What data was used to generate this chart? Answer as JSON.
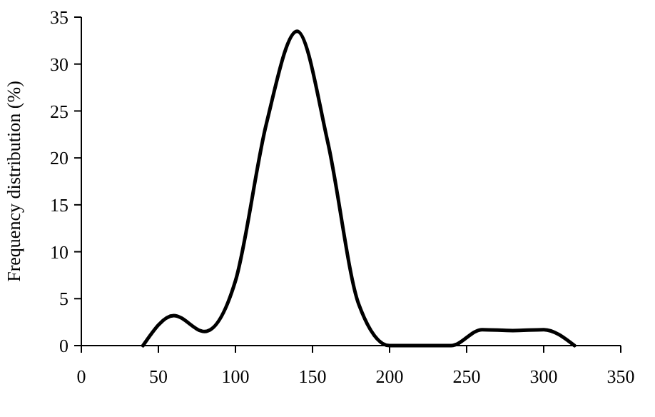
{
  "chart_data": {
    "type": "line",
    "ylabel": "Frequency distribution (%)",
    "x": [
      40,
      60,
      80,
      100,
      120,
      140,
      160,
      180,
      200,
      220,
      240,
      260,
      280,
      300,
      320
    ],
    "series": [
      {
        "color": "#000000",
        "values": [
          0,
          3.2,
          1.5,
          6.9,
          23.6,
          33.5,
          21.6,
          4.4,
          0,
          0,
          0,
          1.7,
          1.6,
          1.7,
          0
        ]
      }
    ],
    "xlim": [
      0,
      350
    ],
    "xticks": [
      0,
      50,
      100,
      150,
      200,
      250,
      300,
      350
    ],
    "ylim": [
      0,
      35
    ],
    "yticks": [
      0,
      5,
      10,
      15,
      20,
      25,
      30,
      35
    ],
    "marker": "none",
    "line_style": "solid"
  }
}
